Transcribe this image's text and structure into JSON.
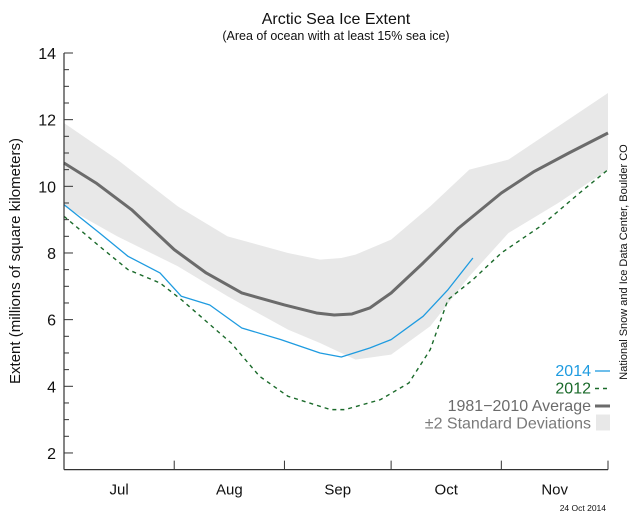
{
  "chart_data": {
    "type": "line",
    "title": "Arctic Sea Ice Extent",
    "subtitle": "(Area of ocean with at least 15% sea ice)",
    "ylabel": "Extent (millions of square kilometers)",
    "xlabel": "",
    "xlim": [
      "07-01",
      "12-01"
    ],
    "ylim": [
      1.5,
      14
    ],
    "yticks": [
      2,
      4,
      6,
      8,
      10,
      12,
      14
    ],
    "month_labels": [
      "Jul",
      "Aug",
      "Sep",
      "Oct",
      "Nov"
    ],
    "grid": false,
    "legend_placement": "bottom-right",
    "series": [
      {
        "name": "2014",
        "color": "#1e9be0",
        "style": "solid",
        "x": [
          "07-01",
          "07-11",
          "07-19",
          "07-28",
          "08-03",
          "08-11",
          "08-20",
          "08-31",
          "09-11",
          "09-17",
          "09-25",
          "10-01",
          "10-10",
          "10-17",
          "10-24"
        ],
        "y": [
          9.45,
          8.6,
          7.9,
          7.4,
          6.7,
          6.44,
          5.75,
          5.4,
          5.0,
          4.88,
          5.15,
          5.4,
          6.1,
          6.9,
          7.85
        ]
      },
      {
        "name": "2012",
        "color": "#1a6a2a",
        "style": "dashed",
        "x": [
          "07-01",
          "07-11",
          "07-19",
          "07-28",
          "08-03",
          "08-17",
          "08-25",
          "09-02",
          "09-14",
          "09-18",
          "09-28",
          "10-06",
          "10-12",
          "10-17",
          "10-24",
          "11-01",
          "11-12",
          "11-23",
          "12-01"
        ],
        "y": [
          9.1,
          8.2,
          7.5,
          7.1,
          6.6,
          5.3,
          4.3,
          3.7,
          3.3,
          3.3,
          3.6,
          4.1,
          5.1,
          6.6,
          7.2,
          8.0,
          8.8,
          9.8,
          10.5
        ]
      },
      {
        "name": "1981−2010 Average",
        "color": "#6b6b6b",
        "style": "thick",
        "x": [
          "07-01",
          "07-10",
          "07-20",
          "08-01",
          "08-10",
          "08-20",
          "09-01",
          "09-10",
          "09-15",
          "09-20",
          "09-25",
          "10-01",
          "10-10",
          "10-20",
          "11-01",
          "11-10",
          "11-20",
          "12-01"
        ],
        "y": [
          10.7,
          10.1,
          9.3,
          8.1,
          7.4,
          6.8,
          6.44,
          6.2,
          6.14,
          6.17,
          6.35,
          6.8,
          7.7,
          8.75,
          9.8,
          10.43,
          11.0,
          11.6
        ]
      }
    ],
    "band": {
      "name": "±2 Standard Deviations",
      "color": "#e8e8e8",
      "x": [
        "07-01",
        "07-16",
        "08-02",
        "08-16",
        "09-02",
        "09-11",
        "09-17",
        "09-21",
        "10-01",
        "10-12",
        "10-23",
        "11-03",
        "11-17",
        "12-01"
      ],
      "lower": [
        9.4,
        8.5,
        7.6,
        6.7,
        5.7,
        5.3,
        5.0,
        4.8,
        4.95,
        5.8,
        7.3,
        8.6,
        9.5,
        10.5
      ],
      "upper": [
        11.9,
        10.8,
        9.4,
        8.5,
        8.0,
        7.8,
        7.85,
        7.95,
        8.4,
        9.4,
        10.5,
        10.8,
        11.8,
        12.8
      ]
    }
  },
  "credit": "National Snow and Ice Data Center, Boulder CO",
  "date_stamp": "24 Oct 2014"
}
